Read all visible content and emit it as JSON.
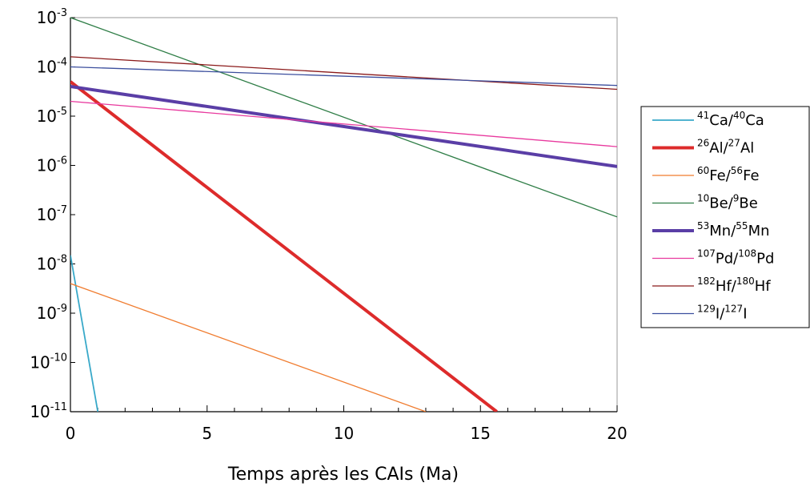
{
  "chart_data": {
    "type": "line",
    "title": "",
    "xlabel": "Temps après les CAIs (Ma)",
    "ylabel": "",
    "xlim": [
      0,
      20
    ],
    "ylim": [
      1e-11,
      0.001
    ],
    "yscale": "log",
    "grid": false,
    "legend_position": "right",
    "x_ticks": [
      "0",
      "5",
      "10",
      "15",
      "20"
    ],
    "y_ticks": [
      {
        "base": "10",
        "exp": "-3"
      },
      {
        "base": "10",
        "exp": "-4"
      },
      {
        "base": "10",
        "exp": "-5"
      },
      {
        "base": "10",
        "exp": "-6"
      },
      {
        "base": "10",
        "exp": "-7"
      },
      {
        "base": "10",
        "exp": "-8"
      },
      {
        "base": "10",
        "exp": "-9"
      },
      {
        "base": "10",
        "exp": "-10"
      },
      {
        "base": "10",
        "exp": "-11"
      }
    ],
    "series": [
      {
        "name": "41Ca/40Ca",
        "legend": [
          {
            "t": "41",
            "sup": true
          },
          {
            "t": "Ca/"
          },
          {
            "t": "40",
            "sup": true
          },
          {
            "t": "Ca"
          }
        ],
        "color": "#39a9c9",
        "width": 1.8,
        "x": [
          0,
          1
        ],
        "y": [
          1.5e-08,
          1e-11
        ]
      },
      {
        "name": "26Al/27Al",
        "legend": [
          {
            "t": "26",
            "sup": true
          },
          {
            "t": "Al/"
          },
          {
            "t": "27",
            "sup": true
          },
          {
            "t": "Al"
          }
        ],
        "color": "#dd2b2b",
        "width": 4,
        "x": [
          0,
          15.6
        ],
        "y": [
          5e-05,
          1e-11
        ]
      },
      {
        "name": "60Fe/56Fe",
        "legend": [
          {
            "t": "60",
            "sup": true
          },
          {
            "t": "Fe/"
          },
          {
            "t": "56",
            "sup": true
          },
          {
            "t": "Fe"
          }
        ],
        "color": "#f07c2f",
        "width": 1.3,
        "x": [
          0,
          13
        ],
        "y": [
          4e-09,
          1e-11
        ]
      },
      {
        "name": "10Be/9Be",
        "legend": [
          {
            "t": "10",
            "sup": true
          },
          {
            "t": "Be/"
          },
          {
            "t": "9",
            "sup": true
          },
          {
            "t": "Be"
          }
        ],
        "color": "#2e7d46",
        "width": 1.3,
        "x": [
          0,
          20
        ],
        "y": [
          0.001,
          9e-08
        ]
      },
      {
        "name": "53Mn/55Mn",
        "legend": [
          {
            "t": "53",
            "sup": true
          },
          {
            "t": "Mn/"
          },
          {
            "t": "55",
            "sup": true
          },
          {
            "t": "Mn"
          }
        ],
        "color": "#5a3ea6",
        "width": 4,
        "x": [
          0,
          20
        ],
        "y": [
          4e-05,
          9.5e-07
        ]
      },
      {
        "name": "107Pd/108Pd",
        "legend": [
          {
            "t": "107",
            "sup": true
          },
          {
            "t": "Pd/"
          },
          {
            "t": "108",
            "sup": true
          },
          {
            "t": "Pd"
          }
        ],
        "color": "#e8399e",
        "width": 1.3,
        "x": [
          0,
          20
        ],
        "y": [
          2e-05,
          2.4e-06
        ]
      },
      {
        "name": "182Hf/180Hf",
        "legend": [
          {
            "t": "182",
            "sup": true
          },
          {
            "t": "Hf/"
          },
          {
            "t": "180",
            "sup": true
          },
          {
            "t": "Hf"
          }
        ],
        "color": "#8b1a1a",
        "width": 1.3,
        "x": [
          0,
          20
        ],
        "y": [
          0.00016,
          3.5e-05
        ]
      },
      {
        "name": "129I/127I",
        "legend": [
          {
            "t": "129",
            "sup": true
          },
          {
            "t": "I/"
          },
          {
            "t": "127",
            "sup": true
          },
          {
            "t": "I"
          }
        ],
        "color": "#3c4f9e",
        "width": 1.3,
        "x": [
          0,
          20
        ],
        "y": [
          0.0001,
          4.2e-05
        ]
      }
    ]
  }
}
